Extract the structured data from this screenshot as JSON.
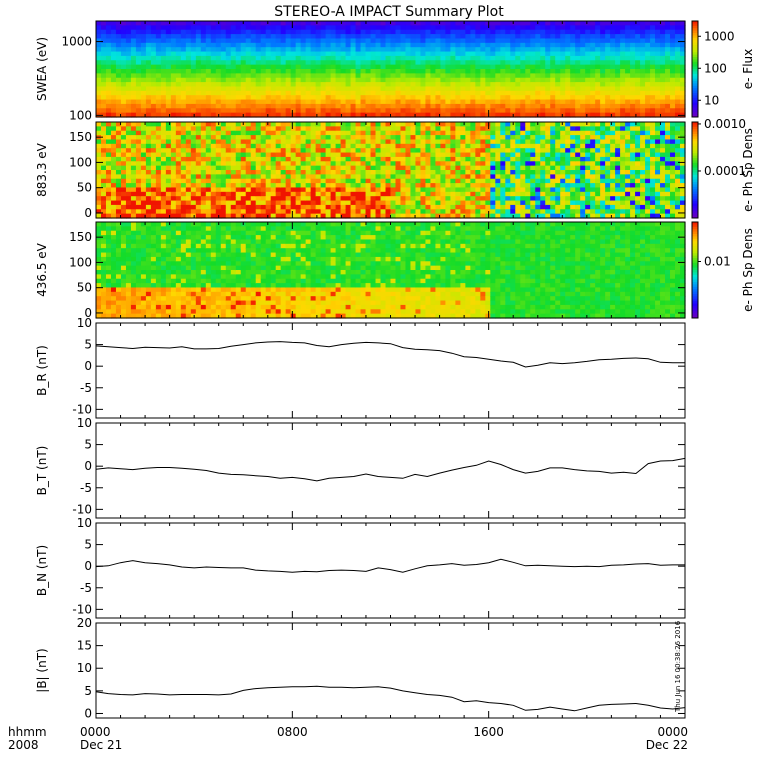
{
  "title": "STEREO-A IMPACT Summary Plot",
  "stamp": "Thu Jun 16 00:38:26 2016",
  "colors": {
    "axis": "#000000",
    "line": "#000000",
    "background": "#ffffff"
  },
  "x_axis": {
    "range_hours": [
      0,
      24
    ],
    "tick_hours": [
      0,
      8,
      16,
      24
    ],
    "tick_labels": [
      "0000",
      "0800",
      "1600",
      "0000"
    ],
    "minor_step_hours": 1,
    "left_label": "hhmm",
    "left_sublabel": "2008",
    "date_labels": [
      {
        "hour": 0,
        "text": "Dec 21"
      },
      {
        "hour": 24,
        "text": "Dec 22"
      }
    ]
  },
  "spectrograms": [
    {
      "id": "swea",
      "ylabel": "SWEA (eV)",
      "ylog": true,
      "yrange": [
        95,
        1900
      ],
      "yticks": [
        100,
        1000
      ],
      "ytick_labels": [
        "100",
        "1000"
      ],
      "colorbar_label": "e- Flux",
      "colorbar_ticks": [
        10,
        100,
        1000
      ],
      "colorbar_tick_labels": [
        "10",
        "100",
        "1000"
      ],
      "colorbar_log": true,
      "colorbar_range": [
        3,
        3000
      ]
    },
    {
      "id": "pad883",
      "ylabel": "883.3 eV",
      "ylog": false,
      "yrange": [
        -10,
        180
      ],
      "yticks": [
        0,
        50,
        100,
        150
      ],
      "ytick_labels": [
        "0",
        "50",
        "100",
        "150"
      ],
      "colorbar_label": "e- Ph Sp Dens",
      "colorbar_ticks": [
        0.0001,
        0.001
      ],
      "colorbar_tick_labels": [
        "0.0001",
        "0.0010"
      ],
      "colorbar_log": true,
      "colorbar_range": [
        1e-05,
        0.0011
      ]
    },
    {
      "id": "pad436",
      "ylabel": "436.5 eV",
      "ylog": false,
      "yrange": [
        -10,
        180
      ],
      "yticks": [
        0,
        50,
        100,
        150
      ],
      "ytick_labels": [
        "0",
        "50",
        "100",
        "150"
      ],
      "colorbar_label": "e- Ph Sp Dens",
      "colorbar_ticks": [
        0.01
      ],
      "colorbar_tick_labels": [
        "0.01"
      ],
      "colorbar_log": true,
      "colorbar_range": [
        0.001,
        0.05
      ]
    }
  ],
  "chart_data": {
    "type": "line",
    "title": "STEREO-A IMPACT Summary Plot",
    "xlabel": "hhmm",
    "x_hours": [
      0,
      0.5,
      1,
      1.5,
      2,
      2.5,
      3,
      3.5,
      4,
      4.5,
      5,
      5.5,
      6,
      6.5,
      7,
      7.5,
      8,
      8.5,
      9,
      9.5,
      10,
      10.5,
      11,
      11.5,
      12,
      12.5,
      13,
      13.5,
      14,
      14.5,
      15,
      15.5,
      16,
      16.5,
      17,
      17.5,
      18,
      18.5,
      19,
      19.5,
      20,
      20.5,
      21,
      21.5,
      22,
      22.5,
      23,
      23.5,
      24
    ],
    "panels": [
      {
        "id": "br",
        "ylabel": "B_R (nT)",
        "ylim": [
          -12,
          10
        ],
        "yticks": [
          -10,
          -5,
          0,
          5,
          10
        ],
        "values": [
          4.7,
          4.5,
          4.3,
          4.1,
          4.4,
          4.3,
          4.2,
          4.5,
          4.0,
          4.0,
          4.1,
          4.6,
          5.0,
          5.4,
          5.6,
          5.7,
          5.5,
          5.4,
          4.8,
          4.5,
          5.0,
          5.3,
          5.5,
          5.4,
          5.2,
          4.3,
          3.9,
          3.8,
          3.6,
          3.0,
          2.2,
          2.0,
          1.6,
          1.2,
          0.9,
          -0.2,
          0.2,
          0.8,
          0.6,
          0.8,
          1.1,
          1.5,
          1.6,
          1.8,
          1.9,
          1.7,
          0.9,
          0.8,
          0.8
        ]
      },
      {
        "id": "bt",
        "ylabel": "B_T (nT)",
        "ylim": [
          -12,
          10
        ],
        "yticks": [
          -10,
          -5,
          0,
          5,
          10
        ],
        "values": [
          -0.7,
          -0.4,
          -0.6,
          -0.8,
          -0.5,
          -0.3,
          -0.3,
          -0.5,
          -0.7,
          -1.0,
          -1.6,
          -1.9,
          -2.0,
          -2.2,
          -2.4,
          -2.8,
          -2.6,
          -2.9,
          -3.4,
          -2.8,
          -2.6,
          -2.4,
          -1.8,
          -2.4,
          -2.6,
          -2.8,
          -1.9,
          -2.4,
          -1.6,
          -0.9,
          -0.3,
          0.2,
          1.2,
          0.4,
          -0.8,
          -1.6,
          -1.2,
          -0.4,
          -0.4,
          -0.8,
          -1.1,
          -1.2,
          -1.6,
          -1.4,
          -1.7,
          0.6,
          1.2,
          1.3,
          1.8
        ]
      },
      {
        "id": "bn",
        "ylabel": "B_N (nT)",
        "ylim": [
          -12,
          10
        ],
        "yticks": [
          -10,
          -5,
          0,
          5,
          10
        ],
        "values": [
          -0.1,
          0.1,
          0.8,
          1.3,
          0.8,
          0.6,
          0.3,
          -0.2,
          -0.4,
          -0.2,
          -0.3,
          -0.4,
          -0.4,
          -0.9,
          -1.1,
          -1.2,
          -1.4,
          -1.2,
          -1.3,
          -1.0,
          -0.9,
          -1.0,
          -1.2,
          -0.4,
          -0.8,
          -1.4,
          -0.6,
          0.1,
          0.3,
          0.6,
          0.2,
          0.4,
          0.8,
          1.6,
          0.9,
          0.1,
          0.2,
          0.1,
          0.0,
          -0.1,
          0.0,
          -0.1,
          0.2,
          0.3,
          0.5,
          0.6,
          0.2,
          0.3,
          0.3
        ]
      },
      {
        "id": "bmag",
        "ylabel": "|B| (nT)",
        "ylim": [
          -1,
          20
        ],
        "yticks": [
          0,
          5,
          10,
          15,
          20
        ],
        "values": [
          4.8,
          4.4,
          4.2,
          4.1,
          4.4,
          4.3,
          4.1,
          4.2,
          4.2,
          4.2,
          4.1,
          4.3,
          5.1,
          5.5,
          5.7,
          5.8,
          5.9,
          5.9,
          6.0,
          5.8,
          5.8,
          5.7,
          5.8,
          5.9,
          5.6,
          5.0,
          4.6,
          4.2,
          4.0,
          3.6,
          2.6,
          2.8,
          2.4,
          2.2,
          1.8,
          0.7,
          0.9,
          1.4,
          1.0,
          0.6,
          1.2,
          1.8,
          2.0,
          2.1,
          2.2,
          1.8,
          1.2,
          1.0,
          1.3
        ]
      }
    ]
  }
}
